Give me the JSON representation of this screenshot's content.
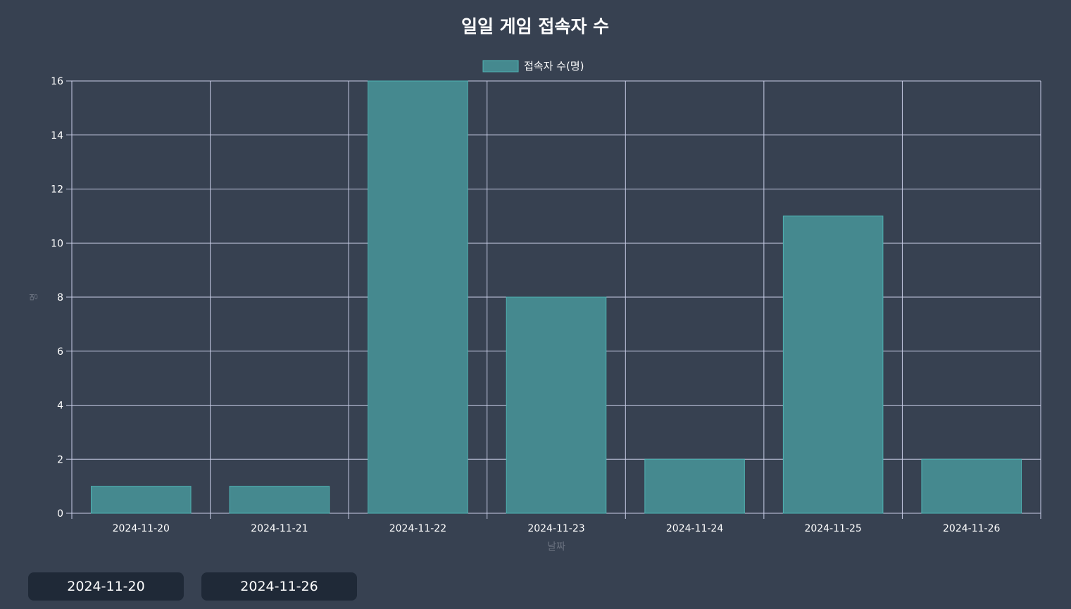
{
  "chart_data": {
    "type": "bar",
    "title": "일일 게임 접속자 수",
    "xlabel": "날짜",
    "ylabel": "명",
    "categories": [
      "2024-11-20",
      "2024-11-21",
      "2024-11-22",
      "2024-11-23",
      "2024-11-24",
      "2024-11-25",
      "2024-11-26"
    ],
    "series": [
      {
        "name": "접속자 수(명)",
        "values": [
          1,
          1,
          16,
          8,
          2,
          11,
          2
        ]
      }
    ],
    "ylim": [
      0,
      16
    ],
    "yticks": [
      0,
      2,
      4,
      6,
      8,
      10,
      12,
      14,
      16
    ],
    "grid": true,
    "legend_position": "top-center",
    "colors": {
      "bar_fill": "#45898f",
      "bar_border": "#4fb3b3",
      "grid": "#c8cde6",
      "tick_text": "#ffffff",
      "axis_title": "#6b7280",
      "title_text": "#ffffff"
    }
  },
  "date_range": {
    "start": "2024-11-20",
    "end": "2024-11-26"
  }
}
